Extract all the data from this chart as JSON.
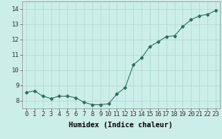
{
  "x": [
    0,
    1,
    2,
    3,
    4,
    5,
    6,
    7,
    8,
    9,
    10,
    11,
    12,
    13,
    14,
    15,
    16,
    17,
    18,
    19,
    20,
    21,
    22,
    23
  ],
  "y": [
    8.55,
    8.65,
    8.3,
    8.15,
    8.3,
    8.3,
    8.2,
    7.9,
    7.75,
    7.75,
    7.8,
    8.45,
    8.85,
    10.35,
    10.8,
    11.55,
    11.85,
    12.2,
    12.25,
    12.85,
    13.3,
    13.55,
    13.65,
    13.9
  ],
  "line_color": "#2a6b5e",
  "marker": "D",
  "marker_size": 2.5,
  "bg_color": "#cceee8",
  "grid_color": "#aad8d0",
  "xlabel": "Humidex (Indice chaleur)",
  "ylim": [
    7.5,
    14.5
  ],
  "xlim": [
    -0.5,
    23.5
  ],
  "yticks": [
    8,
    9,
    10,
    11,
    12,
    13,
    14
  ],
  "xticks": [
    0,
    1,
    2,
    3,
    4,
    5,
    6,
    7,
    8,
    9,
    10,
    11,
    12,
    13,
    14,
    15,
    16,
    17,
    18,
    19,
    20,
    21,
    22,
    23
  ],
  "tick_fontsize": 6.5,
  "xlabel_fontsize": 7.5
}
